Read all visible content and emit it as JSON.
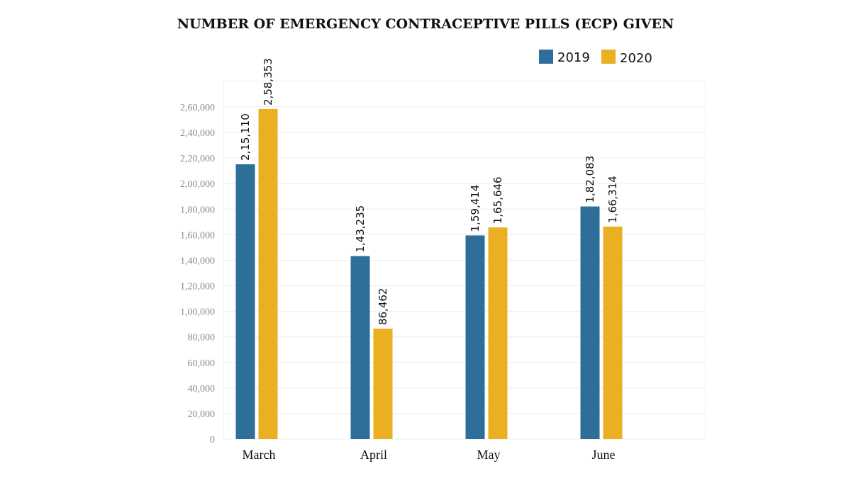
{
  "chart_data": {
    "type": "bar",
    "title": "NUMBER OF EMERGENCY CONTRACEPTIVE PILLS (ECP) GIVEN",
    "xlabel": "",
    "ylabel": "",
    "categories": [
      "March",
      "April",
      "May",
      "June"
    ],
    "series": [
      {
        "name": "2019",
        "color": "#2e6f9a",
        "values": [
          215110,
          143235,
          159414,
          182083
        ],
        "labels": [
          "2,15,110",
          "1,43,235",
          "1,59,414",
          "1,82,083"
        ]
      },
      {
        "name": "2020",
        "color": "#ebb021",
        "values": [
          258353,
          86462,
          165646,
          166314
        ],
        "labels": [
          "2,58,353",
          "86,462",
          "1,65,646",
          "1,66,314"
        ]
      }
    ],
    "ylim": [
      0,
      260000
    ],
    "yticks": [
      0,
      20000,
      40000,
      60000,
      80000,
      100000,
      120000,
      140000,
      160000,
      180000,
      200000,
      220000,
      240000,
      260000
    ],
    "ytick_labels": [
      "0",
      "20,000",
      "40,000",
      "60,000",
      "80,000",
      "1,00,000",
      "1,20,000",
      "1,40,000",
      "1,60,000",
      "1,80,000",
      "2,00,000",
      "2,20,000",
      "2,40,000",
      "2,60,000"
    ],
    "grid": true,
    "legend_position": "top-right"
  }
}
